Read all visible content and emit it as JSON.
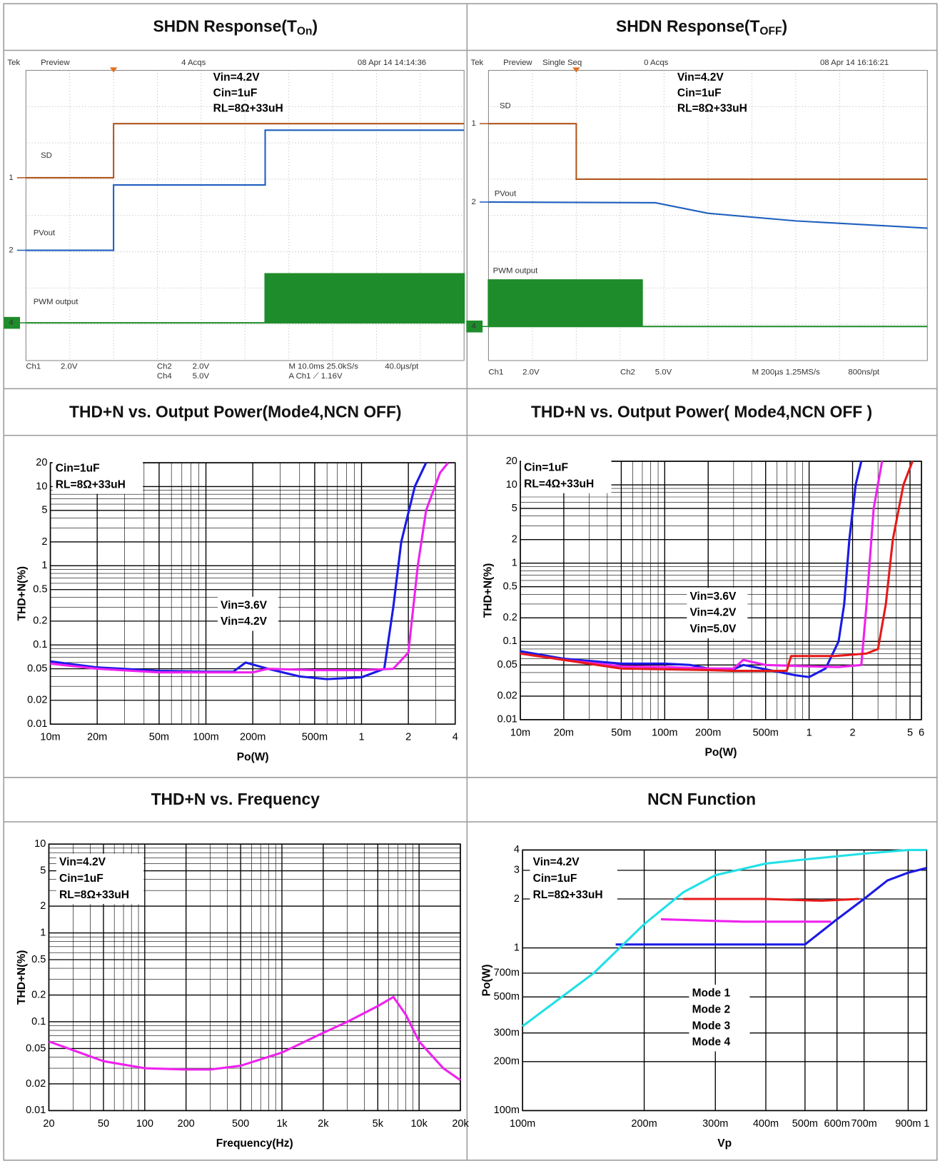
{
  "chart_data": [
    {
      "type": "scope",
      "title_parts": [
        "SHDN Response(T",
        "On",
        ")"
      ],
      "status": [
        "Tek",
        "Preview",
        "4 Acqs",
        "08 Apr 14 14:14:36"
      ],
      "annotations": [
        "Vin=4.2V",
        "Cin=1uF",
        "RL=8Ω+33uH"
      ],
      "xlim": [
        0,
        10
      ],
      "ylim": [
        0,
        8
      ],
      "series": [
        {
          "name": "SD",
          "marker": "1",
          "color": "#b0561c",
          "x": [
            0,
            2,
            2,
            10
          ],
          "values": [
            5.04,
            5.04,
            6.53,
            6.53
          ]
        },
        {
          "name": "PVout",
          "marker": "2",
          "color": "#1f5fbf",
          "x": [
            0,
            2,
            2,
            5.46,
            5.46,
            10
          ],
          "values": [
            3.04,
            3.04,
            4.84,
            4.84,
            6.35,
            6.35
          ]
        },
        {
          "name": "PWM output",
          "marker": "4",
          "color": "#1e8c2a",
          "filled": true,
          "x": [
            0,
            5.46,
            5.46,
            10,
            10
          ],
          "values": [
            1.04,
            1.04,
            2.39,
            2.39,
            1.04
          ]
        }
      ],
      "readout": [
        "Ch1",
        "2.0V",
        "Ch2",
        "2.0V",
        "Ch4",
        "5.0V",
        "M 10.0ms 25.0kS/s",
        "40.0µs/pt",
        "A  Ch1  ⟋  1.16V"
      ]
    },
    {
      "type": "scope",
      "title_parts": [
        "SHDN Response(T",
        "OFF",
        ")"
      ],
      "status": [
        "Tek",
        "Preview",
        "Single Seq",
        "0 Acqs",
        "08 Apr 14 16:16:21"
      ],
      "annotations": [
        "Vin=4.2V",
        "Cin=1uF",
        "RL=8Ω+33uH"
      ],
      "xlim": [
        0,
        10
      ],
      "ylim": [
        0,
        8
      ],
      "series": [
        {
          "name": "SD",
          "marker": "1",
          "color": "#b0561c",
          "x": [
            0,
            2,
            2,
            10
          ],
          "values": [
            6.53,
            6.53,
            5.0,
            5.0
          ]
        },
        {
          "name": "PVout",
          "marker": "2",
          "color": "#1f5fbf",
          "x": [
            0,
            3.8,
            5,
            7,
            10
          ],
          "values": [
            4.37,
            4.35,
            4.06,
            3.85,
            3.65
          ]
        },
        {
          "name": "PWM output",
          "marker": "4",
          "color": "#1e8c2a",
          "filled": true,
          "x": [
            0,
            0,
            3.5,
            3.5,
            10
          ],
          "values": [
            0.94,
            2.22,
            2.22,
            0.94,
            0.94
          ]
        }
      ],
      "readout": [
        "Ch1",
        "2.0V",
        "Ch2",
        "5.0V",
        "M 200µs 1.25MS/s",
        "800ns/pt"
      ]
    },
    {
      "type": "line",
      "title": "THD+N vs. Output Power(Mode4,NCN OFF)",
      "log_x": true,
      "log_y": true,
      "minor_grid": true,
      "x_label": "Po(W)",
      "y_label": "THD+N(%)",
      "annotations": [
        "Cin=1uF",
        "RL=8Ω+33uH"
      ],
      "xlim": [
        0.01,
        4
      ],
      "ylim": [
        0.01,
        20
      ],
      "xticks": [
        {
          "value": 0.01,
          "label": "10m"
        },
        {
          "value": 0.02,
          "label": "20m"
        },
        {
          "value": 0.05,
          "label": "50m"
        },
        {
          "value": 0.1,
          "label": "100m"
        },
        {
          "value": 0.2,
          "label": "200m"
        },
        {
          "value": 0.5,
          "label": "500m"
        },
        1,
        2,
        4
      ],
      "yticks": [
        0.01,
        0.02,
        0.05,
        0.1,
        0.2,
        0.5,
        1,
        2,
        5,
        10,
        20
      ],
      "series": [
        {
          "name": "Vin=3.6V",
          "color": "#1a1ae6",
          "x": [
            0.01,
            0.02,
            0.05,
            0.1,
            0.15,
            0.18,
            0.25,
            0.4,
            0.6,
            1,
            1.4,
            1.6,
            1.8,
            2.2,
            2.6
          ],
          "values": [
            0.062,
            0.052,
            0.047,
            0.046,
            0.046,
            0.06,
            0.05,
            0.04,
            0.037,
            0.039,
            0.05,
            0.3,
            2,
            10,
            20
          ]
        },
        {
          "name": "Vin=4.2V",
          "color": "#ee22ee",
          "x": [
            0.01,
            0.02,
            0.05,
            0.1,
            0.2,
            0.25,
            0.5,
            1,
            1.6,
            2,
            2.3,
            2.6,
            3.2,
            3.6
          ],
          "values": [
            0.058,
            0.05,
            0.045,
            0.045,
            0.045,
            0.05,
            0.048,
            0.048,
            0.05,
            0.08,
            1,
            5,
            15,
            20
          ]
        }
      ]
    },
    {
      "type": "line",
      "title": "THD+N vs. Output Power( Mode4,NCN OFF )",
      "log_x": true,
      "log_y": true,
      "minor_grid": true,
      "x_label": "Po(W)",
      "y_label": "THD+N(%)",
      "annotations": [
        "Cin=1uF",
        "RL=4Ω+33uH"
      ],
      "xlim": [
        0.01,
        6
      ],
      "ylim": [
        0.01,
        20
      ],
      "xticks": [
        {
          "value": 0.01,
          "label": "10m"
        },
        {
          "value": 0.02,
          "label": "20m"
        },
        {
          "value": 0.05,
          "label": "50m"
        },
        {
          "value": 0.1,
          "label": "100m"
        },
        {
          "value": 0.2,
          "label": "200m"
        },
        {
          "value": 0.5,
          "label": "500m"
        },
        1,
        2,
        5,
        6
      ],
      "yticks": [
        0.01,
        0.02,
        0.05,
        0.1,
        0.2,
        0.5,
        1,
        2,
        5,
        10,
        20
      ],
      "series": [
        {
          "name": "Vin=3.6V",
          "color": "#1a1ae6",
          "x": [
            0.01,
            0.02,
            0.05,
            0.1,
            0.15,
            0.2,
            0.3,
            0.35,
            0.5,
            0.8,
            1,
            1.3,
            1.6,
            1.75,
            1.9,
            2.1,
            2.3
          ],
          "values": [
            0.075,
            0.06,
            0.052,
            0.052,
            0.05,
            0.045,
            0.044,
            0.05,
            0.044,
            0.037,
            0.035,
            0.045,
            0.1,
            0.3,
            2,
            10,
            20
          ]
        },
        {
          "name": "Vin=4.2V",
          "color": "#ee22ee",
          "x": [
            0.01,
            0.02,
            0.05,
            0.1,
            0.2,
            0.3,
            0.35,
            0.5,
            1,
            1.6,
            2.3,
            2.5,
            2.8,
            3.2
          ],
          "values": [
            0.07,
            0.058,
            0.048,
            0.047,
            0.045,
            0.045,
            0.058,
            0.05,
            0.048,
            0.047,
            0.05,
            0.3,
            5,
            20
          ]
        },
        {
          "name": "Vin=5.0V",
          "color": "#e61a1a",
          "x": [
            0.01,
            0.02,
            0.05,
            0.1,
            0.2,
            0.3,
            0.7,
            0.75,
            1.5,
            2.5,
            3,
            3.4,
            3.8,
            4.5,
            5.2
          ],
          "values": [
            0.07,
            0.058,
            0.045,
            0.044,
            0.043,
            0.042,
            0.042,
            0.065,
            0.065,
            0.07,
            0.08,
            0.3,
            2,
            10,
            20
          ]
        }
      ]
    },
    {
      "type": "line",
      "title": "THD+N vs. Frequency",
      "log_x": true,
      "log_y": true,
      "minor_grid": true,
      "x_label": "Frequency(Hz)",
      "y_label": "THD+N(%)",
      "annotations": [
        "Vin=4.2V",
        "Cin=1uF",
        "RL=8Ω+33uH"
      ],
      "xlim": [
        20,
        20000
      ],
      "ylim": [
        0.01,
        10
      ],
      "xticks": [
        20,
        50,
        100,
        200,
        500,
        {
          "value": 1000,
          "label": "1k"
        },
        {
          "value": 2000,
          "label": "2k"
        },
        {
          "value": 5000,
          "label": "5k"
        },
        {
          "value": 10000,
          "label": "10k"
        },
        {
          "value": 20000,
          "label": "20k"
        }
      ],
      "yticks": [
        0.01,
        0.02,
        0.05,
        0.1,
        0.2,
        0.5,
        1,
        2,
        5,
        10
      ],
      "series": [
        {
          "color": "#ee22ee",
          "x": [
            20,
            50,
            100,
            200,
            300,
            500,
            1000,
            2000,
            3000,
            5000,
            6500,
            8000,
            10000,
            15000,
            20000
          ],
          "values": [
            0.06,
            0.036,
            0.03,
            0.029,
            0.029,
            0.032,
            0.045,
            0.075,
            0.1,
            0.15,
            0.19,
            0.12,
            0.06,
            0.03,
            0.022
          ]
        }
      ]
    },
    {
      "type": "line",
      "title": "NCN Function",
      "log_x": true,
      "log_y": true,
      "minor_grid": false,
      "x_label": "Vp",
      "y_label": "Po(W)",
      "annotations": [
        "Vin=4.2V",
        "Cin=1uF",
        "RL=8Ω+33uH"
      ],
      "xlim": [
        0.1,
        1
      ],
      "ylim": [
        0.1,
        4
      ],
      "xticks": [
        {
          "value": 0.1,
          "label": "100m"
        },
        {
          "value": 0.2,
          "label": "200m"
        },
        {
          "value": 0.3,
          "label": "300m"
        },
        {
          "value": 0.4,
          "label": "400m"
        },
        {
          "value": 0.5,
          "label": "500m"
        },
        {
          "value": 0.6,
          "label": "600m"
        },
        {
          "value": 0.7,
          "label": "700m"
        },
        {
          "value": 0.9,
          "label": "900m"
        },
        1
      ],
      "yticks": [
        {
          "value": 0.1,
          "label": "100m"
        },
        {
          "value": 0.2,
          "label": "200m"
        },
        {
          "value": 0.3,
          "label": "300m"
        },
        {
          "value": 0.5,
          "label": "500m"
        },
        {
          "value": 0.7,
          "label": "700m"
        },
        1,
        2,
        3,
        4
      ],
      "series": [
        {
          "name": "Mode 1",
          "color": "#e61a1a",
          "x": [
            0.25,
            0.4,
            0.55,
            0.68
          ],
          "values": [
            2.0,
            2.0,
            1.95,
            2.0
          ]
        },
        {
          "name": "Mode 2",
          "color": "#ee22ee",
          "x": [
            0.22,
            0.35,
            0.5,
            0.58
          ],
          "values": [
            1.5,
            1.45,
            1.45,
            1.45
          ]
        },
        {
          "name": "Mode 3",
          "color": "#1a1ae6",
          "x": [
            0.17,
            0.3,
            0.5,
            0.6,
            0.7,
            0.8,
            0.9,
            1
          ],
          "values": [
            1.05,
            1.05,
            1.05,
            1.5,
            2.0,
            2.6,
            2.9,
            3.1
          ]
        },
        {
          "name": "Mode 4",
          "color": "#22e0e6",
          "x": [
            0.1,
            0.15,
            0.2,
            0.25,
            0.3,
            0.4,
            0.5,
            0.7,
            0.9,
            1
          ],
          "values": [
            0.33,
            0.7,
            1.4,
            2.2,
            2.8,
            3.3,
            3.5,
            3.8,
            4,
            4
          ]
        }
      ]
    }
  ]
}
